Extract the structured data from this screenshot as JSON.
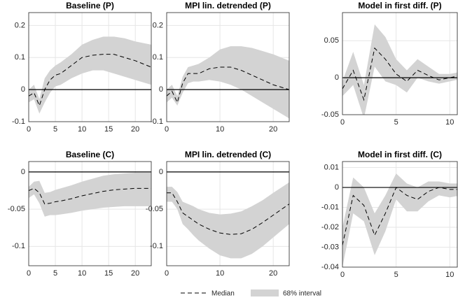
{
  "chart_data": [
    {
      "type": "line",
      "title": "Baseline (P)",
      "x": [
        0,
        1,
        2,
        3,
        4,
        5,
        6,
        8,
        10,
        12,
        14,
        16,
        18,
        20,
        23
      ],
      "series": [
        {
          "color": "#000000",
          "values": [
            -0.02,
            -0.01,
            -0.05,
            0.0,
            0.03,
            0.045,
            0.05,
            0.075,
            0.1,
            0.107,
            0.11,
            0.11,
            0.1,
            0.09,
            0.07
          ]
        }
      ],
      "band": {
        "color": "#d3d3d3",
        "lower": [
          -0.04,
          -0.03,
          -0.075,
          -0.04,
          -0.01,
          0.01,
          0.015,
          0.035,
          0.05,
          0.06,
          0.06,
          0.05,
          0.04,
          0.03,
          0.015
        ],
        "upper": [
          0.0,
          0.015,
          -0.03,
          0.035,
          0.06,
          0.075,
          0.085,
          0.11,
          0.14,
          0.155,
          0.165,
          0.165,
          0.16,
          0.15,
          0.14
        ]
      },
      "xlim": [
        0,
        23
      ],
      "ylim": [
        -0.1,
        0.24
      ],
      "xticks": [
        0,
        5,
        10,
        15,
        20
      ],
      "yticks": [
        -0.1,
        0,
        0.1,
        0.2
      ],
      "grid": true
    },
    {
      "type": "line",
      "title": "MPI lin. detrended (P)",
      "x": [
        0,
        1,
        2,
        3,
        4,
        5,
        6,
        8,
        10,
        12,
        14,
        16,
        18,
        20,
        23
      ],
      "series": [
        {
          "color": "#000000",
          "values": [
            -0.02,
            -0.005,
            -0.04,
            0.02,
            0.05,
            0.05,
            0.05,
            0.065,
            0.07,
            0.07,
            0.06,
            0.045,
            0.03,
            0.015,
            0.0
          ]
        }
      ],
      "band": {
        "color": "#d3d3d3",
        "lower": [
          -0.04,
          -0.025,
          -0.05,
          -0.01,
          0.02,
          0.025,
          0.025,
          0.03,
          0.025,
          0.015,
          0.0,
          -0.02,
          -0.04,
          -0.06,
          -0.09
        ],
        "upper": [
          0.0,
          0.015,
          -0.02,
          0.04,
          0.07,
          0.075,
          0.08,
          0.1,
          0.125,
          0.135,
          0.135,
          0.13,
          0.12,
          0.11,
          0.09
        ]
      },
      "xlim": [
        0,
        23
      ],
      "ylim": [
        -0.1,
        0.24
      ],
      "xticks": [
        0,
        10,
        20
      ],
      "yticks": [
        -0.1,
        0,
        0.1,
        0.2
      ],
      "grid": true
    },
    {
      "type": "line",
      "title": "Model in first diff. (P)",
      "x": [
        0,
        1,
        2,
        3,
        4,
        5,
        6,
        7,
        8,
        9,
        10,
        11
      ],
      "series": [
        {
          "color": "#000000",
          "values": [
            -0.015,
            0.01,
            -0.03,
            0.04,
            0.025,
            0.005,
            -0.005,
            0.01,
            0.003,
            -0.003,
            0.0,
            0.003
          ]
        }
      ],
      "band": {
        "color": "#d3d3d3",
        "lower": [
          -0.025,
          -0.01,
          -0.055,
          0.015,
          -0.005,
          -0.01,
          -0.02,
          0.0,
          -0.005,
          -0.008,
          -0.005,
          -0.002
        ],
        "upper": [
          -0.005,
          0.035,
          -0.01,
          0.072,
          0.055,
          0.025,
          0.01,
          0.025,
          0.015,
          0.005,
          0.005,
          0.008
        ]
      },
      "xlim": [
        0,
        10.7
      ],
      "ylim": [
        -0.05,
        0.088
      ],
      "xticks": [
        0,
        5,
        10
      ],
      "yticks": [
        -0.05,
        0,
        0.05
      ],
      "grid": true
    },
    {
      "type": "line",
      "title": "Baseline (C)",
      "x": [
        0,
        1,
        2,
        3,
        4,
        5,
        6,
        8,
        10,
        12,
        14,
        16,
        18,
        20,
        23
      ],
      "series": [
        {
          "color": "#000000",
          "values": [
            -0.025,
            -0.022,
            -0.028,
            -0.043,
            -0.042,
            -0.04,
            -0.039,
            -0.036,
            -0.032,
            -0.029,
            -0.026,
            -0.024,
            -0.023,
            -0.022,
            -0.022
          ]
        }
      ],
      "band": {
        "color": "#d3d3d3",
        "lower": [
          -0.035,
          -0.03,
          -0.042,
          -0.06,
          -0.058,
          -0.058,
          -0.057,
          -0.055,
          -0.052,
          -0.05,
          -0.048,
          -0.047,
          -0.046,
          -0.046,
          -0.046
        ],
        "upper": [
          -0.02,
          -0.013,
          -0.012,
          -0.028,
          -0.027,
          -0.024,
          -0.022,
          -0.018,
          -0.013,
          -0.009,
          -0.005,
          -0.003,
          -0.002,
          -0.001,
          -0.001
        ]
      },
      "xlim": [
        0,
        23
      ],
      "ylim": [
        -0.126,
        0.014
      ],
      "xticks": [
        0,
        5,
        10,
        15,
        20
      ],
      "yticks": [
        -0.1,
        -0.05,
        0
      ],
      "grid": true
    },
    {
      "type": "line",
      "title": "MPI lin. detrended (C)",
      "x": [
        0,
        1,
        2,
        3,
        4,
        5,
        6,
        8,
        10,
        12,
        14,
        16,
        18,
        20,
        23
      ],
      "series": [
        {
          "color": "#000000",
          "values": [
            -0.028,
            -0.028,
            -0.04,
            -0.055,
            -0.06,
            -0.065,
            -0.07,
            -0.077,
            -0.082,
            -0.084,
            -0.083,
            -0.077,
            -0.068,
            -0.058,
            -0.043
          ]
        }
      ],
      "band": {
        "color": "#d3d3d3",
        "lower": [
          -0.04,
          -0.04,
          -0.05,
          -0.07,
          -0.077,
          -0.085,
          -0.092,
          -0.103,
          -0.112,
          -0.116,
          -0.116,
          -0.11,
          -0.1,
          -0.088,
          -0.07
        ],
        "upper": [
          -0.02,
          -0.02,
          -0.027,
          -0.04,
          -0.043,
          -0.046,
          -0.05,
          -0.055,
          -0.057,
          -0.056,
          -0.053,
          -0.046,
          -0.038,
          -0.028,
          -0.014
        ]
      },
      "xlim": [
        0,
        23
      ],
      "ylim": [
        -0.126,
        0.014
      ],
      "xticks": [
        0,
        10,
        20
      ],
      "yticks": [
        -0.1,
        -0.05,
        0
      ],
      "grid": true
    },
    {
      "type": "line",
      "title": "Model in first diff. (C)",
      "x": [
        0,
        1,
        2,
        3,
        4,
        5,
        6,
        7,
        8,
        9,
        10,
        11
      ],
      "series": [
        {
          "color": "#000000",
          "values": [
            -0.029,
            -0.004,
            -0.009,
            -0.024,
            -0.013,
            0.0,
            -0.004,
            -0.006,
            -0.002,
            0.0,
            -0.001,
            -0.001
          ]
        }
      ],
      "band": {
        "color": "#d3d3d3",
        "lower": [
          -0.04,
          -0.013,
          -0.017,
          -0.034,
          -0.022,
          -0.006,
          -0.012,
          -0.012,
          -0.007,
          -0.004,
          -0.005,
          -0.004
        ],
        "upper": [
          -0.02,
          0.005,
          0.0,
          -0.013,
          -0.004,
          0.007,
          0.002,
          0.0,
          0.003,
          0.003,
          0.002,
          0.002
        ]
      },
      "xlim": [
        0,
        10.7
      ],
      "ylim": [
        -0.04,
        0.013
      ],
      "xticks": [
        0,
        5,
        10
      ],
      "yticks": [
        -0.04,
        -0.03,
        -0.02,
        -0.01,
        0,
        0.01
      ],
      "grid": true
    }
  ],
  "legend": {
    "median": "Median",
    "interval": "68% interval"
  }
}
